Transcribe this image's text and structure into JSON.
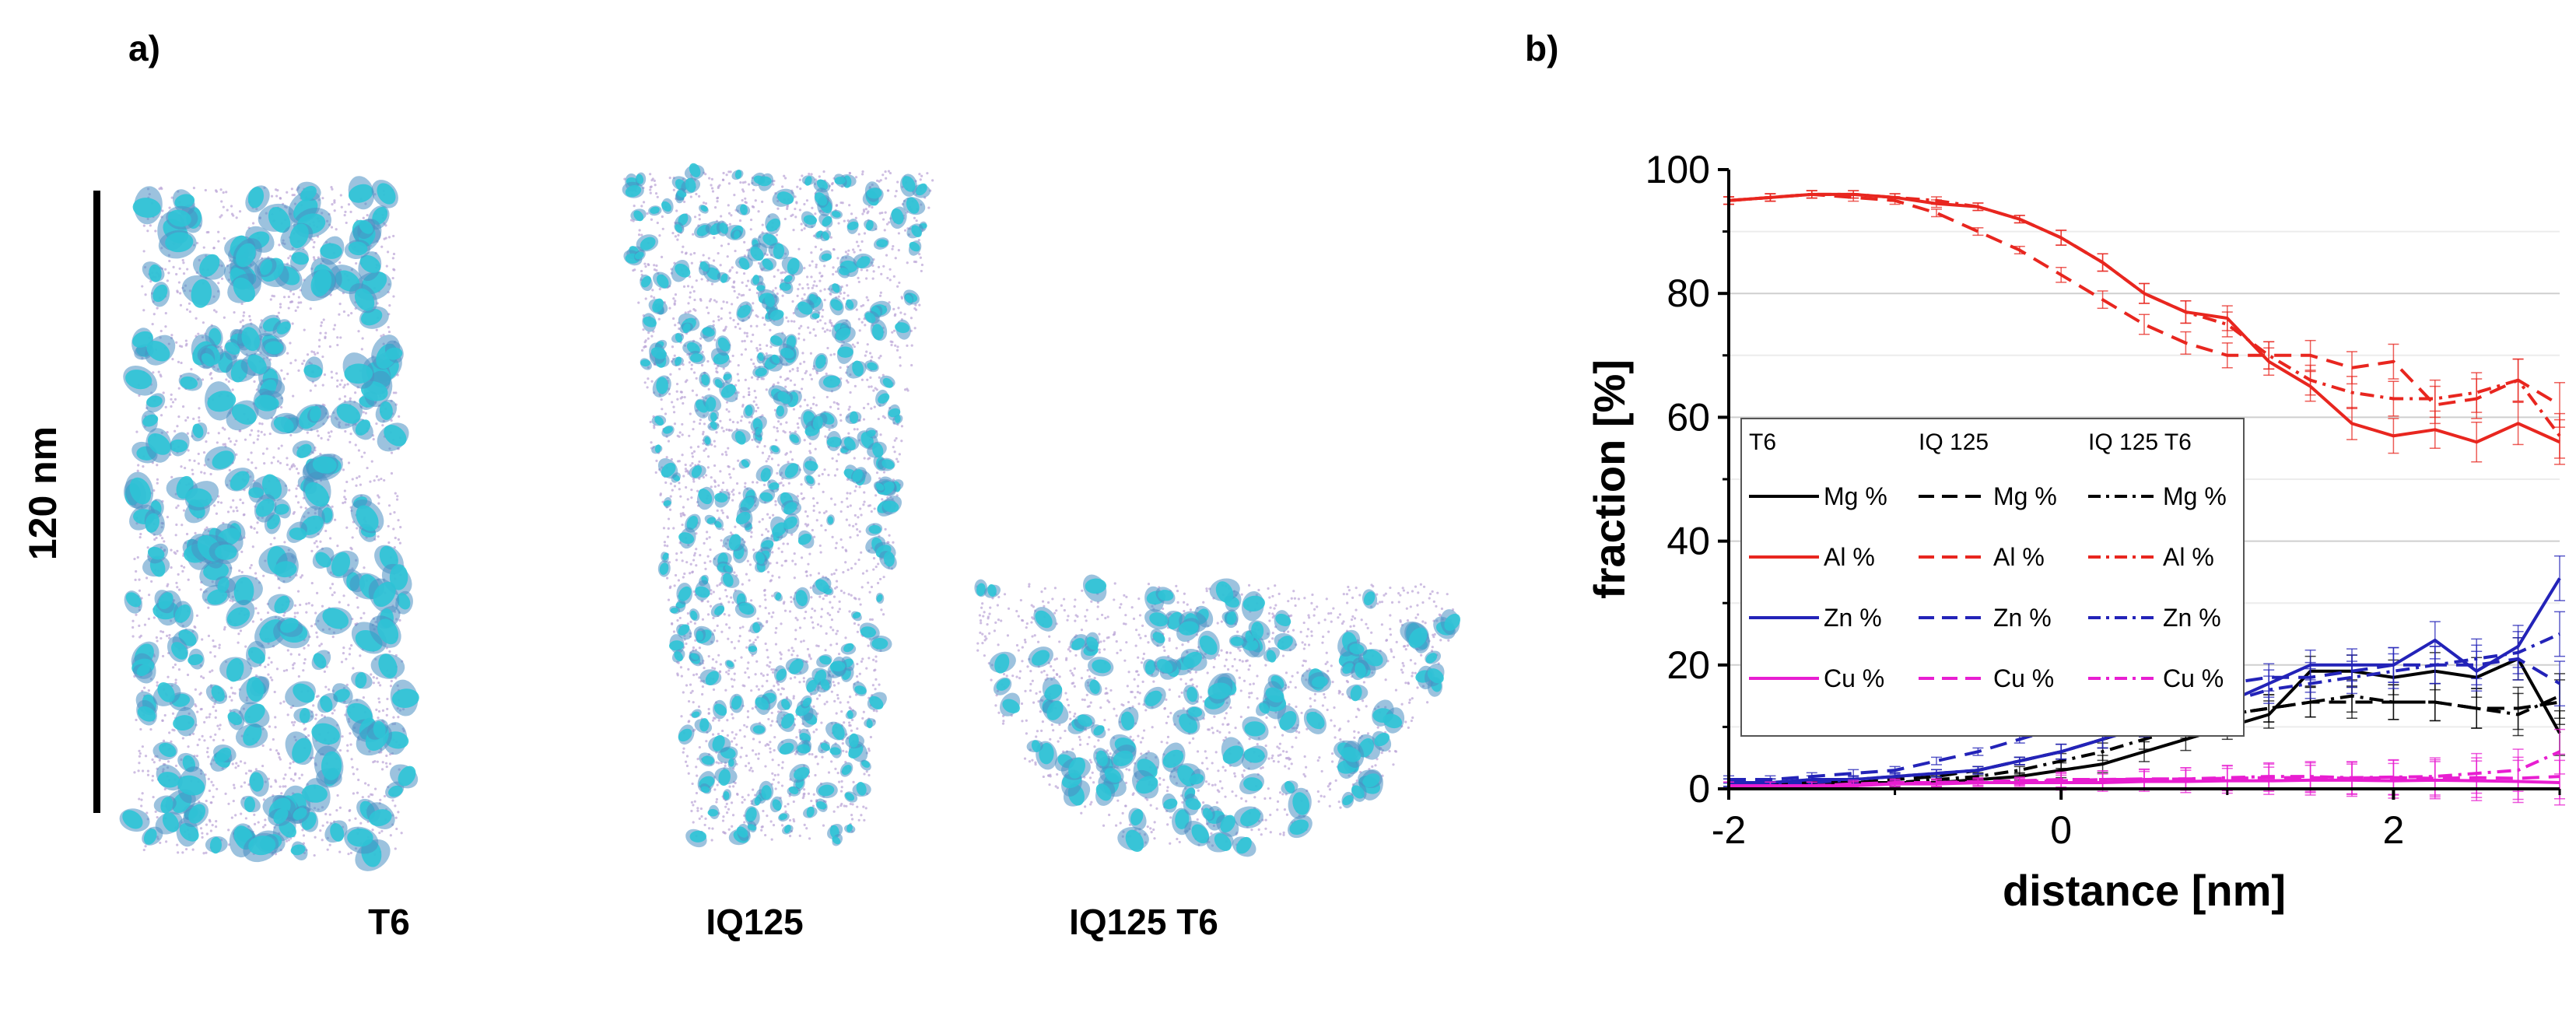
{
  "panel_a": {
    "label": "a)",
    "scale_bar_label": "120 nm",
    "samples": [
      {
        "name": "T6"
      },
      {
        "name": "IQ125"
      },
      {
        "name": "IQ125 T6"
      }
    ],
    "colors": {
      "cluster": "#2ec4d6",
      "cluster_dark": "#4a8fc2",
      "atom_haze": "#b9a3d6"
    }
  },
  "panel_b": {
    "label": "b)",
    "chart_data": {
      "type": "line",
      "xlabel": "distance [nm]",
      "ylabel": "fraction [%]",
      "xlim": [
        -2,
        3
      ],
      "ylim": [
        0,
        100
      ],
      "xticks": [
        -2,
        0,
        2
      ],
      "yticks": [
        0,
        20,
        40,
        60,
        80,
        100
      ],
      "grid": "horizontal",
      "legend_headers": [
        "T6",
        "IQ 125",
        "IQ 125 T6"
      ],
      "legend_position": "center-left",
      "x": [
        -2.0,
        -1.75,
        -1.5,
        -1.25,
        -1.0,
        -0.75,
        -0.5,
        -0.25,
        0.0,
        0.25,
        0.5,
        0.75,
        1.0,
        1.25,
        1.5,
        1.75,
        2.0,
        2.25,
        2.5,
        2.75,
        3.0
      ],
      "series": [
        {
          "name": "Mg %",
          "condition": "T6",
          "style": "solid",
          "color": "#000000",
          "values": [
            1,
            1,
            1,
            1,
            1,
            1,
            1.5,
            2,
            3,
            4,
            6,
            8,
            10,
            12,
            19,
            19,
            18,
            19,
            18,
            21,
            9
          ]
        },
        {
          "name": "Mg %",
          "condition": "IQ 125",
          "style": "dashed",
          "color": "#000000",
          "values": [
            1,
            1,
            1,
            1,
            1.5,
            2,
            3,
            4.5,
            6,
            8,
            10,
            11,
            12,
            13,
            14,
            14,
            14,
            14,
            13,
            13,
            14
          ]
        },
        {
          "name": "Mg %",
          "condition": "IQ 125 T6",
          "style": "dashdot",
          "color": "#000000",
          "values": [
            1,
            1,
            1,
            1,
            1,
            1.5,
            2,
            3,
            4.5,
            6,
            8,
            10,
            12,
            13,
            14,
            15,
            14,
            14,
            13,
            12,
            15
          ]
        },
        {
          "name": "Al %",
          "condition": "T6",
          "style": "solid",
          "color": "#e8261f",
          "values": [
            95,
            95.5,
            96,
            96,
            95.5,
            94.5,
            94,
            92,
            89,
            85,
            80,
            77,
            76,
            69,
            65,
            59,
            57,
            58,
            56,
            59,
            56
          ]
        },
        {
          "name": "Al %",
          "condition": "IQ 125",
          "style": "dashed",
          "color": "#e8261f",
          "values": [
            95,
            95.5,
            96,
            95.5,
            95,
            93,
            90,
            87,
            83,
            79,
            75,
            72,
            70,
            70,
            70,
            68,
            69,
            62,
            63,
            66,
            62
          ]
        },
        {
          "name": "Al %",
          "condition": "IQ 125 T6",
          "style": "dashdot",
          "color": "#e8261f",
          "values": [
            95,
            95.5,
            96,
            96,
            95.5,
            95,
            94,
            92,
            89,
            85,
            80,
            77,
            75,
            70,
            66,
            64,
            63,
            63,
            64,
            66,
            57
          ]
        },
        {
          "name": "Zn %",
          "condition": "T6",
          "style": "solid",
          "color": "#2323b8",
          "values": [
            1,
            1,
            1.5,
            1.5,
            2,
            2.5,
            3,
            4.5,
            6,
            8,
            11,
            13,
            14,
            17,
            20,
            20,
            20,
            24,
            19,
            23,
            34
          ]
        },
        {
          "name": "Zn %",
          "condition": "IQ 125",
          "style": "dashed",
          "color": "#2323b8",
          "values": [
            1.5,
            1.5,
            2,
            2.5,
            3,
            4.5,
            6,
            8,
            10,
            12,
            14,
            16,
            17,
            18,
            18,
            19,
            20,
            20,
            20,
            21,
            17
          ]
        },
        {
          "name": "Zn %",
          "condition": "IQ 125 T6",
          "style": "dashdot",
          "color": "#2323b8",
          "values": [
            1,
            1,
            1,
            1.5,
            2,
            2.5,
            3,
            4.5,
            6,
            8,
            10,
            12,
            14,
            16,
            17,
            18,
            19,
            20,
            21,
            22,
            25
          ]
        },
        {
          "name": "Cu %",
          "condition": "T6",
          "style": "solid",
          "color": "#e81ed1",
          "values": [
            0.5,
            0.5,
            0.5,
            0.5,
            0.8,
            0.8,
            1,
            1,
            1,
            1,
            1.2,
            1.2,
            1.3,
            1.3,
            1.4,
            1.4,
            1.3,
            1.4,
            1.3,
            1.2,
            1
          ]
        },
        {
          "name": "Cu %",
          "condition": "IQ 125",
          "style": "dashed",
          "color": "#e81ed1",
          "values": [
            0.5,
            0.5,
            0.5,
            0.8,
            1,
            1,
            1.2,
            1.3,
            1.5,
            1.5,
            1.6,
            1.6,
            1.7,
            1.8,
            1.8,
            1.7,
            1.8,
            1.7,
            1.8,
            1.7,
            2
          ]
        },
        {
          "name": "Cu %",
          "condition": "IQ 125 T6",
          "style": "dashdot",
          "color": "#e81ed1",
          "values": [
            0.5,
            0.5,
            0.5,
            0.6,
            0.8,
            1,
            1,
            1.2,
            1.3,
            1.5,
            1.5,
            1.6,
            1.8,
            2,
            2,
            1.8,
            1.9,
            2,
            2.5,
            3,
            6
          ]
        }
      ]
    }
  }
}
